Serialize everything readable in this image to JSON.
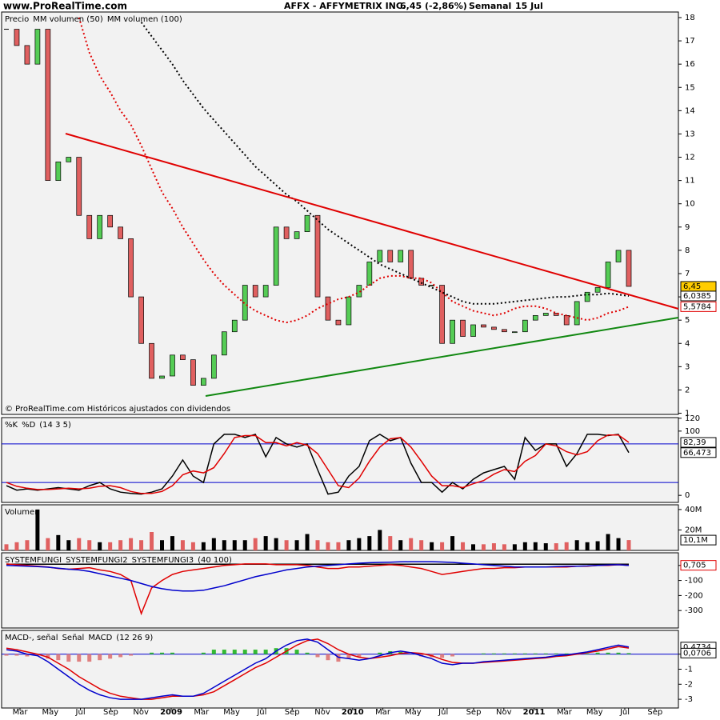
{
  "site": "www.ProRealTime.com",
  "title": "AFFX - AFFYMETRIX INC.",
  "quote": "6,45 (-2,86%)",
  "period": "Semanal",
  "date": "15 Jul",
  "footer": "© ProRealTime.com Históricos ajustados con dividendos",
  "time_labels": [
    "Mar",
    "May",
    "Jul",
    "Sep",
    "Nov",
    "2009",
    "Mar",
    "May",
    "Jul",
    "Sep",
    "Nov",
    "2010",
    "Mar",
    "May",
    "Jul",
    "Sep",
    "Nov",
    "2011",
    "Mar",
    "May",
    "Jul",
    "Sep"
  ],
  "chart_data": [
    {
      "type": "candlestick",
      "ylim": [
        0.95,
        18.24
      ],
      "yticks": [
        1,
        2,
        3,
        4,
        5,
        6,
        7,
        8,
        9,
        10,
        11,
        12,
        13,
        14,
        15,
        16,
        17,
        18
      ],
      "series": [
        {
          "name": "Precio",
          "color": "#000000",
          "style": "candle",
          "values": [
            17.5,
            16.8,
            16,
            17.5,
            11,
            11.8,
            12,
            9.5,
            8.5,
            9.5,
            9,
            8.5,
            6,
            4,
            2.5,
            2.6,
            3.5,
            3.3,
            2.2,
            2.5,
            3.5,
            4.5,
            5,
            6.5,
            6,
            6.5,
            9,
            8.5,
            8.8,
            9.5,
            6,
            5,
            4.8,
            6,
            6.5,
            7.5,
            8,
            7.5,
            8,
            6.8,
            6.5,
            6.5,
            4,
            5,
            4.3,
            4.8,
            4.7,
            4.6,
            4.5,
            4.5,
            5,
            5.2,
            5.3,
            5.2,
            4.8,
            5.8,
            6.2,
            6.4,
            7.5,
            8,
            6.45
          ]
        },
        {
          "name": "MM volumen (50)",
          "color": "#e00000",
          "style": "dotted",
          "values": [
            null,
            null,
            null,
            null,
            null,
            null,
            null,
            18,
            16.5,
            15.5,
            14.8,
            14,
            13.4,
            12.5,
            11.5,
            10.5,
            9.8,
            9,
            8.3,
            7.6,
            7,
            6.5,
            6.1,
            5.7,
            5.4,
            5.2,
            5.0,
            4.9,
            5.0,
            5.2,
            5.5,
            5.7,
            5.9,
            6.0,
            6.2,
            6.5,
            6.8,
            6.9,
            6.9,
            6.8,
            6.8,
            6.6,
            6.2,
            5.8,
            5.6,
            5.4,
            5.3,
            5.2,
            5.3,
            5.5,
            5.6,
            5.6,
            5.5,
            5.3,
            5.2,
            5.1,
            5.0,
            5.1,
            5.3,
            5.4,
            5.5784
          ]
        },
        {
          "name": "MM volumen (100)",
          "color": "#000000",
          "style": "dotted",
          "values": [
            null,
            null,
            null,
            null,
            null,
            null,
            null,
            null,
            null,
            null,
            null,
            null,
            null,
            17.8,
            17.2,
            16.6,
            16,
            15.3,
            14.7,
            14.1,
            13.6,
            13.1,
            12.6,
            12.1,
            11.6,
            11.2,
            10.8,
            10.4,
            10.1,
            9.7,
            9.3,
            8.9,
            8.6,
            8.3,
            8.0,
            7.7,
            7.4,
            7.2,
            7.0,
            6.8,
            6.6,
            6.4,
            6.2,
            6.0,
            5.8,
            5.7,
            5.7,
            5.7,
            5.75,
            5.8,
            5.85,
            5.9,
            5.95,
            6.0,
            6.0,
            6.05,
            6.1,
            6.1,
            6.15,
            6.1,
            6.0385
          ]
        }
      ],
      "markers": [
        {
          "value": 6.45,
          "label": "6,45"
        },
        {
          "value": 6.0385,
          "label": "6,0385"
        },
        {
          "value": 5.5784,
          "label": "5,5784"
        }
      ]
    },
    {
      "type": "line",
      "ylim": [
        -11,
        121
      ],
      "yticks": [
        0,
        100,
        120
      ],
      "levels": [
        80,
        20
      ],
      "series": [
        {
          "name": "%K",
          "color": "#000000",
          "style": "line",
          "values": [
            15,
            8,
            10,
            8,
            10,
            12,
            10,
            8,
            15,
            20,
            10,
            5,
            3,
            2,
            5,
            10,
            30,
            55,
            30,
            20,
            80,
            95,
            95,
            90,
            95,
            60,
            90,
            80,
            75,
            80,
            40,
            2,
            5,
            30,
            45,
            85,
            95,
            85,
            90,
            50,
            20,
            20,
            5,
            20,
            10,
            25,
            35,
            40,
            45,
            25,
            90,
            70,
            80,
            80,
            45,
            65,
            95,
            95,
            93,
            95,
            66.473
          ]
        },
        {
          "name": "%D",
          "color": "#e00000",
          "style": "line",
          "values": [
            20,
            14,
            11,
            9,
            9,
            10,
            11,
            10,
            11,
            14,
            15,
            12,
            6,
            3,
            3,
            6,
            15,
            32,
            38,
            35,
            43,
            65,
            90,
            93,
            93,
            82,
            82,
            77,
            82,
            78,
            65,
            40,
            15,
            12,
            27,
            53,
            75,
            88,
            90,
            75,
            53,
            30,
            15,
            15,
            12,
            18,
            23,
            33,
            40,
            37,
            53,
            62,
            80,
            77,
            68,
            63,
            68,
            85,
            94,
            94,
            82.39
          ]
        }
      ],
      "params": "(14 3 5)",
      "markers": [
        {
          "value": 82.39,
          "label": "82,39"
        },
        {
          "value": 66.473,
          "label": "66,473"
        }
      ]
    },
    {
      "type": "bar",
      "ylim": [
        0,
        44600000
      ],
      "yticks": [
        {
          "value": 20000000,
          "label": "20M"
        },
        {
          "value": 40000000,
          "label": "40M"
        }
      ],
      "series": [
        {
          "name": "Volumen",
          "color": "#e06060",
          "style": "bar",
          "values": [
            6000000,
            8000000,
            10000000,
            40000000,
            12000000,
            15000000,
            10000000,
            12000000,
            10000000,
            8000000,
            8000000,
            10000000,
            12000000,
            10000000,
            18000000,
            10000000,
            14000000,
            10000000,
            8000000,
            8000000,
            12000000,
            10000000,
            10000000,
            10000000,
            12000000,
            14000000,
            12000000,
            10000000,
            10000000,
            16000000,
            10000000,
            8000000,
            8000000,
            10000000,
            12000000,
            14000000,
            20000000,
            14000000,
            10000000,
            12000000,
            10000000,
            8000000,
            8000000,
            14000000,
            8000000,
            6000000,
            6000000,
            7000000,
            6000000,
            6000000,
            8000000,
            8000000,
            7000000,
            7000000,
            8000000,
            10000000,
            8000000,
            9000000,
            16000000,
            12000000,
            10100000
          ]
        }
      ],
      "markers": [
        {
          "value": 10100000,
          "label": "10,1M"
        }
      ]
    },
    {
      "type": "line",
      "ylim": [
        -416,
        84
      ],
      "yticks": [
        0,
        -100,
        -200,
        -300
      ],
      "series": [
        {
          "name": "SYSTEMFUNGI",
          "color": "#000000",
          "style": "line",
          "values": [
            8,
            8,
            8,
            8,
            8,
            8,
            8,
            8,
            8,
            8,
            8,
            8,
            8,
            8,
            8,
            8,
            8,
            8,
            8,
            8,
            8,
            8,
            8,
            8,
            8,
            8,
            8,
            8,
            8,
            8,
            8,
            8,
            8,
            8,
            8,
            8,
            8,
            8,
            8,
            8,
            8,
            8,
            8,
            8,
            8,
            8,
            8,
            8,
            8,
            8,
            8,
            8,
            8,
            8,
            8,
            8,
            8,
            8,
            8,
            8,
            8
          ]
        },
        {
          "name": "SYSTEMFUNGI2",
          "color": "#e00000",
          "style": "line",
          "values": [
            10,
            5,
            0,
            -5,
            -10,
            -20,
            -25,
            -20,
            -15,
            -30,
            -40,
            -60,
            -100,
            -320,
            -150,
            -100,
            -60,
            -40,
            -30,
            -20,
            -10,
            0,
            5,
            10,
            10,
            10,
            5,
            5,
            5,
            0,
            -10,
            -20,
            -20,
            -10,
            -10,
            -5,
            0,
            5,
            0,
            -10,
            -20,
            -40,
            -60,
            -50,
            -40,
            -30,
            -20,
            -20,
            -15,
            -15,
            -10,
            -10,
            -10,
            -10,
            -10,
            -5,
            -5,
            0,
            0,
            5,
            0.705
          ]
        },
        {
          "name": "SYSTEMFUNGI3",
          "color": "#0000cc",
          "style": "line",
          "values": [
            0,
            -2,
            -5,
            -8,
            -12,
            -18,
            -25,
            -30,
            -40,
            -55,
            -70,
            -85,
            -100,
            -120,
            -140,
            -155,
            -165,
            -170,
            -170,
            -165,
            -150,
            -135,
            -115,
            -95,
            -75,
            -60,
            -45,
            -30,
            -20,
            -10,
            -5,
            0,
            5,
            10,
            15,
            18,
            20,
            22,
            24,
            25,
            25,
            25,
            23,
            20,
            15,
            10,
            5,
            0,
            -5,
            -10,
            -10,
            -10,
            -10,
            -8,
            -6,
            -5,
            -3,
            0,
            3,
            5,
            0
          ]
        }
      ],
      "params": "(40 100)",
      "markers": [
        {
          "value": 0.705,
          "label": "0,705"
        }
      ]
    },
    {
      "type": "bar",
      "ylim": [
        -3.58,
        1.58
      ],
      "yticks": [
        0,
        -1,
        -2,
        -3
      ],
      "levels": [
        0
      ],
      "series": [
        {
          "name": "MACD-, señal",
          "color": "#33bb33",
          "style": "hist",
          "values": [
            -0.1,
            -0.1,
            -0.15,
            -0.1,
            -0.3,
            -0.4,
            -0.5,
            -0.5,
            -0.5,
            -0.4,
            -0.3,
            -0.2,
            -0.1,
            0,
            0.1,
            0.1,
            0.1,
            0,
            0,
            0.1,
            0.3,
            0.3,
            0.3,
            0.3,
            0.3,
            0.3,
            0.4,
            0.4,
            0.3,
            0.1,
            -0.2,
            -0.4,
            -0.5,
            -0.3,
            -0.2,
            0,
            0.1,
            0.2,
            0.15,
            0,
            -0.15,
            -0.2,
            -0.25,
            -0.15,
            0,
            0,
            0.05,
            0.05,
            0.05,
            0.05,
            0.05,
            0.05,
            0.05,
            0.05,
            0.05,
            0.05,
            0.05,
            0.1,
            0.1,
            0.1,
            0.0706
          ]
        },
        {
          "name": "Señal",
          "color": "#e00000",
          "style": "line",
          "values": [
            0.4,
            0.3,
            0.15,
            0.0,
            -0.2,
            -0.6,
            -1.0,
            -1.5,
            -1.9,
            -2.3,
            -2.6,
            -2.8,
            -2.9,
            -3.0,
            -3.0,
            -2.9,
            -2.8,
            -2.8,
            -2.8,
            -2.7,
            -2.5,
            -2.1,
            -1.7,
            -1.3,
            -0.9,
            -0.6,
            -0.2,
            0.2,
            0.6,
            0.9,
            1.0,
            0.7,
            0.3,
            0.0,
            -0.2,
            -0.3,
            -0.2,
            -0.1,
            0.05,
            0.1,
            0.05,
            -0.1,
            -0.35,
            -0.55,
            -0.6,
            -0.6,
            -0.55,
            -0.5,
            -0.45,
            -0.4,
            -0.35,
            -0.3,
            -0.25,
            -0.15,
            -0.1,
            0.0,
            0.1,
            0.2,
            0.35,
            0.5,
            0.4028
          ]
        },
        {
          "name": "MACD",
          "color": "#0000cc",
          "style": "line",
          "values": [
            0.3,
            0.2,
            0.0,
            -0.1,
            -0.5,
            -1.0,
            -1.5,
            -2.0,
            -2.4,
            -2.7,
            -2.9,
            -3.0,
            -3.0,
            -3.0,
            -2.9,
            -2.8,
            -2.7,
            -2.8,
            -2.8,
            -2.6,
            -2.2,
            -1.8,
            -1.4,
            -1.0,
            -0.6,
            -0.3,
            0.2,
            0.6,
            0.9,
            1.0,
            0.8,
            0.3,
            -0.2,
            -0.3,
            -0.4,
            -0.3,
            -0.1,
            0.1,
            0.2,
            0.1,
            -0.1,
            -0.3,
            -0.6,
            -0.7,
            -0.6,
            -0.6,
            -0.5,
            -0.45,
            -0.4,
            -0.35,
            -0.3,
            -0.25,
            -0.2,
            -0.1,
            -0.05,
            0.05,
            0.15,
            0.3,
            0.45,
            0.6,
            0.4734
          ]
        }
      ],
      "params": "(12 26 9)",
      "markers": [
        {
          "value": 0.4734,
          "label": "0,4734"
        },
        {
          "value": 0.0706,
          "label": "0,0706"
        }
      ]
    }
  ]
}
